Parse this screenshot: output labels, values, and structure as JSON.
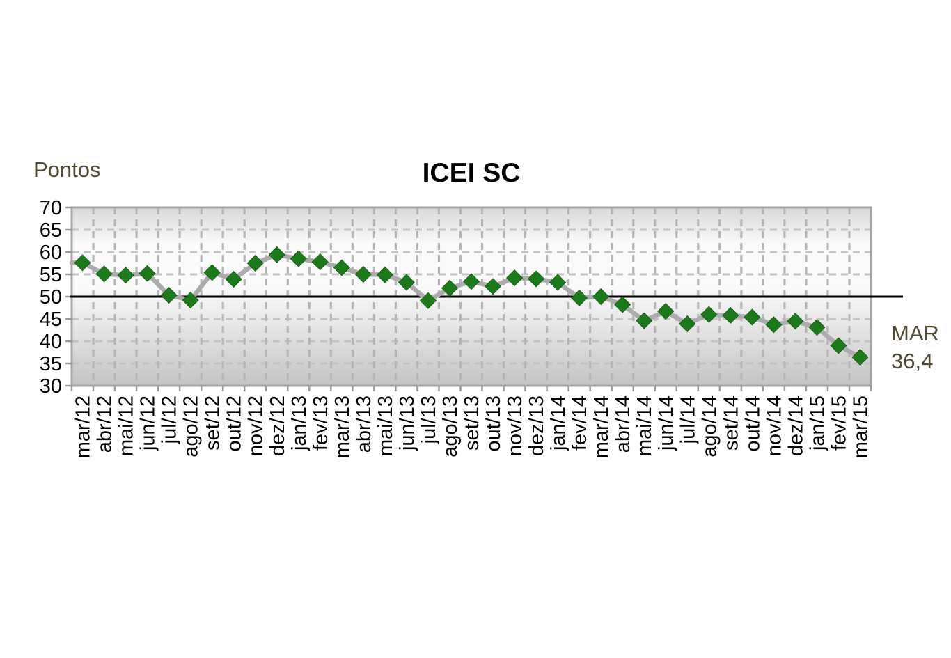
{
  "page": {
    "background_color": "#ffffff"
  },
  "chart_data": {
    "type": "line",
    "title": "ICEI SC",
    "ylabel": "Pontos",
    "xlabel": "",
    "legend": "none",
    "grid": "dashed vertical and horizontal gridlines",
    "marker": "diamond",
    "categories": [
      "mar/12",
      "abr/12",
      "mai/12",
      "jun/12",
      "jul/12",
      "ago/12",
      "set/12",
      "out/12",
      "nov/12",
      "dez/12",
      "jan/13",
      "fev/13",
      "mar/13",
      "abr/13",
      "mai/13",
      "jun/13",
      "jul/13",
      "ago/13",
      "set/13",
      "out/13",
      "nov/13",
      "dez/13",
      "jan/14",
      "fev/14",
      "mar/14",
      "abr/14",
      "mai/14",
      "jun/14",
      "jul/14",
      "ago/14",
      "set/14",
      "out/14",
      "nov/14",
      "dez/14",
      "jan/15",
      "fev/15",
      "mar/15"
    ],
    "series": [
      {
        "name": "ICEI SC",
        "values": [
          57.6,
          55.1,
          54.8,
          55.2,
          50.3,
          49.2,
          55.4,
          53.9,
          57.5,
          59.4,
          58.5,
          57.8,
          56.5,
          55.0,
          54.9,
          53.2,
          49.1,
          51.9,
          53.4,
          52.3,
          54.2,
          54.0,
          53.2,
          49.7,
          50.0,
          48.2,
          44.6,
          46.7,
          43.9,
          46.0,
          45.8,
          45.4,
          43.7,
          44.5,
          43.1,
          39.0,
          36.4
        ]
      }
    ],
    "ylim": [
      30,
      70
    ],
    "y_ticks": [
      70,
      65,
      60,
      55,
      50,
      45,
      40,
      35,
      30
    ],
    "reference_line": {
      "value": 50,
      "color": "#000000"
    },
    "annotation": {
      "line1": "MAR",
      "line2": "36,4",
      "color": "#514b33"
    },
    "colors": {
      "marker": "#1b7b1b",
      "line": "#acacac",
      "plot_border": "#a6a6a6",
      "grid_vertical": "#b5b5b5",
      "grid_horizontal": "#c3c3c3",
      "tick": "#9a9a9a",
      "axis_text": "#000000",
      "axis_title_text": "#514b33",
      "plot_bg_top": "#d7d7d7",
      "plot_bg_light": "#f9f9f9",
      "plot_bg_bottom": "#c3c3c3"
    }
  }
}
